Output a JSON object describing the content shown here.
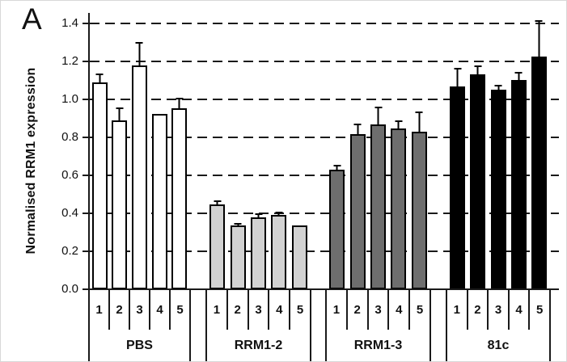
{
  "figure": {
    "panel_label": "A",
    "ylabel": "Normalised RRM1 expression"
  },
  "chart_data": {
    "type": "bar",
    "title": "",
    "panel_label": "A",
    "xlabel": "",
    "ylabel": "Normalised RRM1 expression",
    "ylim": [
      0,
      1.4
    ],
    "yticks": [
      0.0,
      0.2,
      0.4,
      0.6,
      0.8,
      1.0,
      1.2,
      1.4
    ],
    "grid": "dashed-horizontal",
    "legend_position": "none",
    "categories": [
      "1",
      "2",
      "3",
      "4",
      "5"
    ],
    "series": [
      {
        "name": "PBS",
        "fill": "#FFFFFF",
        "values": [
          1.09,
          0.89,
          1.18,
          0.925,
          0.955
        ],
        "errors_upper": [
          0.055,
          0.075,
          0.13,
          0.01,
          0.065
        ]
      },
      {
        "name": "RRM1-2",
        "fill": "#D2D2D2",
        "values": [
          0.445,
          0.335,
          0.38,
          0.39,
          0.335
        ],
        "errors_upper": [
          0.03,
          0.02,
          0.03,
          0.025,
          0.01
        ]
      },
      {
        "name": "RRM1-3",
        "fill": "#6E6E6E",
        "values": [
          0.63,
          0.815,
          0.87,
          0.845,
          0.83
        ],
        "errors_upper": [
          0.035,
          0.065,
          0.1,
          0.05,
          0.115
        ]
      },
      {
        "name": "81c",
        "fill": "#000000",
        "values": [
          1.07,
          1.13,
          1.05,
          1.1,
          1.225
        ],
        "errors_upper": [
          0.105,
          0.055,
          0.035,
          0.05,
          0.2
        ]
      }
    ],
    "colors": {
      "axis": "#1a1a1a",
      "bar_border": "#000000",
      "text": "#111111"
    }
  }
}
